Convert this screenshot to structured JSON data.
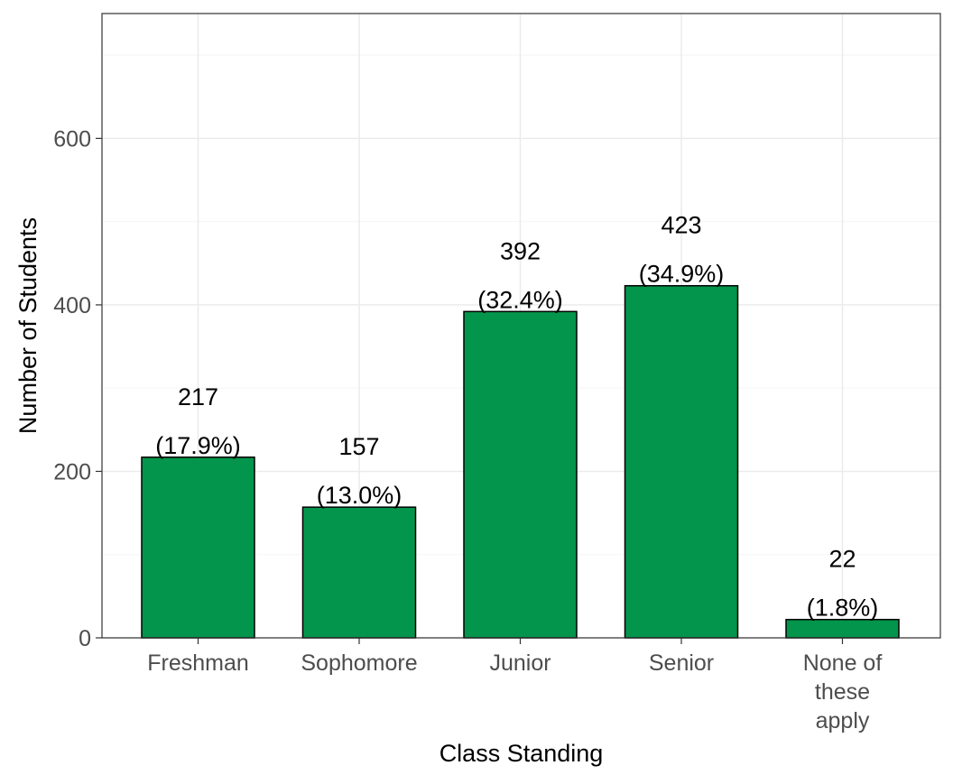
{
  "chart_data": {
    "type": "bar",
    "categories": [
      "Freshman",
      "Sophomore",
      "Junior",
      "Senior",
      "None of\nthese\napply"
    ],
    "values": [
      217,
      157,
      392,
      423,
      22
    ],
    "percent_labels": [
      "(17.9%)",
      "(13.0%)",
      "(32.4%)",
      "(34.9%)",
      "(1.8%)"
    ],
    "title": "",
    "xlabel": "Class Standing",
    "ylabel": "Number of Students",
    "ylim": [
      0,
      750
    ],
    "yticks": [
      0,
      200,
      400,
      600
    ],
    "grid": true,
    "legend": "none"
  },
  "colors": {
    "bar_fill": "#03954b",
    "bar_stroke": "#000000",
    "grid_major": "#ebebeb",
    "grid_minor": "#f5f5f5",
    "panel_border": "#333333",
    "axis_text": "#4d4d4d",
    "label_text": "#000000"
  }
}
